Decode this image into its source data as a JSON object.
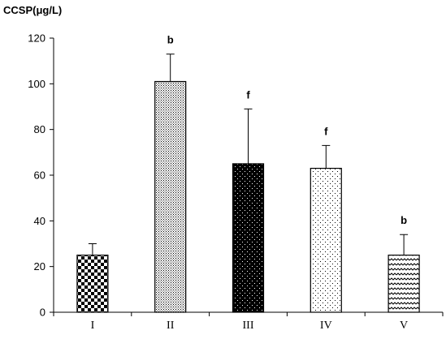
{
  "chart_data": {
    "type": "bar",
    "ylabel": "CCSP(μg/L)",
    "ylim": [
      0,
      120
    ],
    "yticks": [
      0,
      20,
      40,
      60,
      80,
      100,
      120
    ],
    "categories": [
      "I",
      "II",
      "III",
      "IV",
      "V"
    ],
    "values": [
      25,
      101,
      65,
      63,
      25
    ],
    "error_upper": [
      30,
      113,
      89,
      73,
      34
    ],
    "annotations": [
      "",
      "b",
      "f",
      "f",
      "b"
    ],
    "fill_patterns": [
      "checkerboard",
      "dense-dots",
      "black-with-white-dots",
      "sparse-dots",
      "zigzag"
    ],
    "grid": false,
    "legend": "none",
    "colors": {
      "axis": "#000000",
      "bar_outline": "#000000",
      "background": "#ffffff"
    }
  }
}
